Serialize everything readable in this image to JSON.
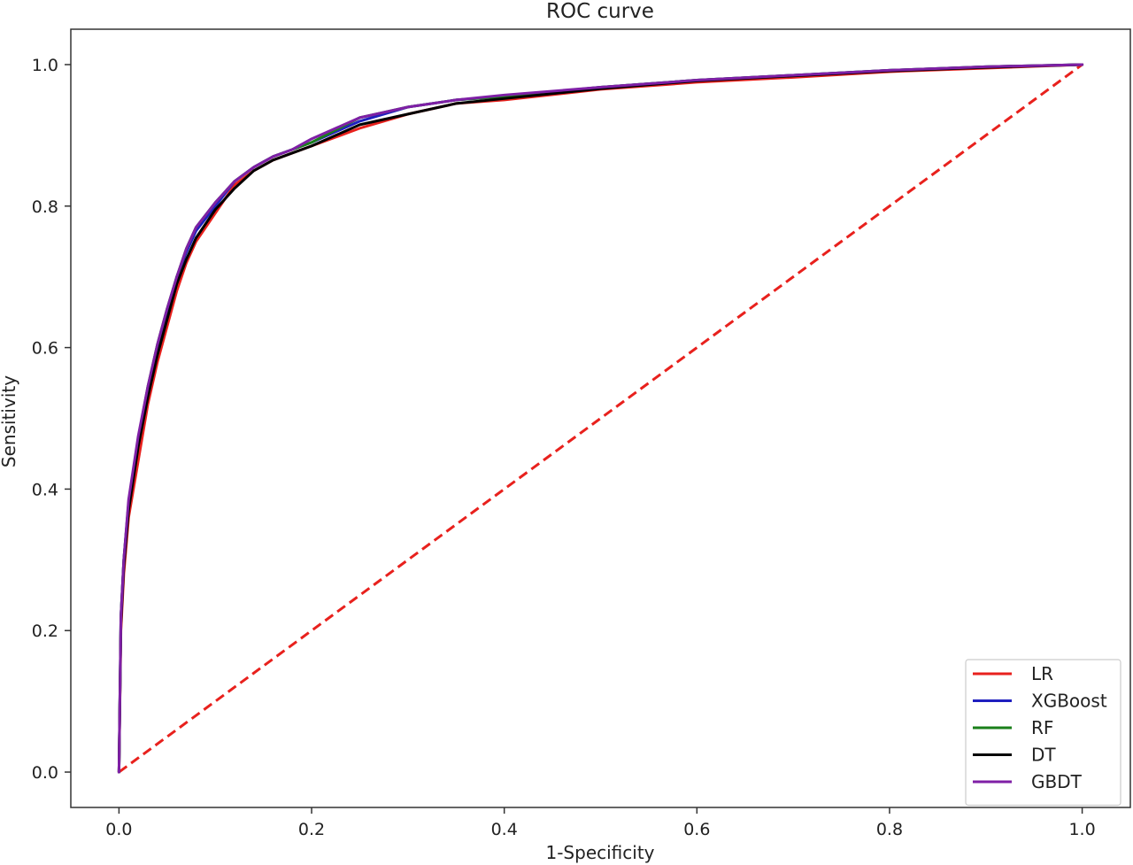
{
  "chart_data": {
    "type": "line",
    "title": "ROC curve",
    "xlabel": "1-Specificity",
    "ylabel": "Sensitivity",
    "xlim": [
      -0.05,
      1.05
    ],
    "ylim": [
      -0.05,
      1.05
    ],
    "xticks": [
      0.0,
      0.2,
      0.4,
      0.6,
      0.8,
      1.0
    ],
    "yticks": [
      0.0,
      0.2,
      0.4,
      0.6,
      0.8,
      1.0
    ],
    "xtick_labels": [
      "0.0",
      "0.2",
      "0.4",
      "0.6",
      "0.8",
      "1.0"
    ],
    "ytick_labels": [
      "0.0",
      "0.2",
      "0.4",
      "0.6",
      "0.8",
      "1.0"
    ],
    "grid": false,
    "legend_position": "lower-right",
    "series": [
      {
        "name": "LR",
        "color": "#e8211d",
        "x": [
          0,
          0.002,
          0.005,
          0.01,
          0.02,
          0.03,
          0.04,
          0.05,
          0.06,
          0.07,
          0.08,
          0.1,
          0.12,
          0.14,
          0.16,
          0.18,
          0.2,
          0.25,
          0.3,
          0.35,
          0.4,
          0.5,
          0.6,
          0.7,
          0.8,
          0.9,
          1.0
        ],
        "y": [
          0,
          0.2,
          0.28,
          0.36,
          0.44,
          0.52,
          0.58,
          0.63,
          0.68,
          0.72,
          0.75,
          0.79,
          0.83,
          0.85,
          0.865,
          0.875,
          0.885,
          0.91,
          0.93,
          0.945,
          0.95,
          0.965,
          0.975,
          0.982,
          0.99,
          0.995,
          1.0
        ]
      },
      {
        "name": "XGBoost",
        "color": "#1f1fbf",
        "x": [
          0,
          0.002,
          0.005,
          0.01,
          0.02,
          0.03,
          0.04,
          0.05,
          0.06,
          0.07,
          0.08,
          0.1,
          0.12,
          0.14,
          0.16,
          0.18,
          0.2,
          0.25,
          0.3,
          0.35,
          0.4,
          0.5,
          0.6,
          0.7,
          0.8,
          0.9,
          1.0
        ],
        "y": [
          0,
          0.22,
          0.3,
          0.38,
          0.47,
          0.54,
          0.6,
          0.65,
          0.7,
          0.735,
          0.765,
          0.8,
          0.835,
          0.855,
          0.87,
          0.88,
          0.89,
          0.92,
          0.94,
          0.95,
          0.955,
          0.968,
          0.978,
          0.985,
          0.992,
          0.997,
          1.0
        ]
      },
      {
        "name": "RF",
        "color": "#1a7f1a",
        "x": [
          0,
          0.002,
          0.005,
          0.01,
          0.02,
          0.03,
          0.04,
          0.05,
          0.06,
          0.07,
          0.08,
          0.1,
          0.12,
          0.14,
          0.16,
          0.18,
          0.2,
          0.25,
          0.3,
          0.35,
          0.4,
          0.5,
          0.6,
          0.7,
          0.8,
          0.9,
          1.0
        ],
        "y": [
          0,
          0.22,
          0.3,
          0.38,
          0.47,
          0.545,
          0.605,
          0.655,
          0.7,
          0.74,
          0.77,
          0.805,
          0.835,
          0.855,
          0.87,
          0.88,
          0.89,
          0.925,
          0.94,
          0.95,
          0.955,
          0.968,
          0.978,
          0.985,
          0.992,
          0.997,
          1.0
        ]
      },
      {
        "name": "DT",
        "color": "#000000",
        "x": [
          0,
          0.002,
          0.005,
          0.01,
          0.02,
          0.03,
          0.04,
          0.05,
          0.06,
          0.07,
          0.08,
          0.1,
          0.12,
          0.14,
          0.16,
          0.18,
          0.2,
          0.25,
          0.3,
          0.35,
          0.4,
          0.5,
          0.6,
          0.7,
          0.8,
          0.9,
          1.0
        ],
        "y": [
          0,
          0.21,
          0.29,
          0.37,
          0.46,
          0.53,
          0.59,
          0.64,
          0.69,
          0.725,
          0.755,
          0.795,
          0.825,
          0.85,
          0.865,
          0.875,
          0.885,
          0.915,
          0.93,
          0.945,
          0.952,
          0.966,
          0.977,
          0.984,
          0.991,
          0.996,
          1.0
        ]
      },
      {
        "name": "GBDT",
        "color": "#7f1fa6",
        "x": [
          0,
          0.002,
          0.005,
          0.01,
          0.02,
          0.03,
          0.04,
          0.05,
          0.06,
          0.07,
          0.08,
          0.1,
          0.12,
          0.14,
          0.16,
          0.18,
          0.2,
          0.25,
          0.3,
          0.35,
          0.4,
          0.5,
          0.6,
          0.7,
          0.8,
          0.9,
          1.0
        ],
        "y": [
          0,
          0.22,
          0.3,
          0.385,
          0.475,
          0.545,
          0.605,
          0.655,
          0.7,
          0.74,
          0.77,
          0.805,
          0.835,
          0.855,
          0.87,
          0.88,
          0.895,
          0.925,
          0.94,
          0.95,
          0.957,
          0.968,
          0.978,
          0.985,
          0.992,
          0.997,
          1.0
        ]
      }
    ],
    "reference_line": {
      "style": "dashed",
      "color": "#e8211d",
      "x": [
        0,
        1
      ],
      "y": [
        0,
        1
      ]
    }
  }
}
